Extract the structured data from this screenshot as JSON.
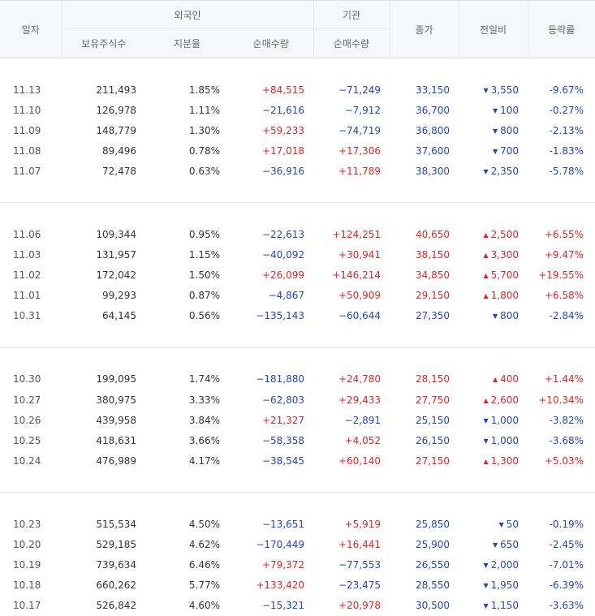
{
  "header": {
    "date": "일자",
    "foreign_group": "외국인",
    "inst_group": "기관",
    "holding": "보유주식수",
    "share_ratio": "지분율",
    "foreign_net": "순매수량",
    "inst_net": "순매수량",
    "close": "종가",
    "change": "전일비",
    "rate": "등락률"
  },
  "colors": {
    "up": "#e22424",
    "down": "#2545b8"
  },
  "rows": [
    {
      "date": "11.13",
      "holding": "211,493",
      "share": "1.85%",
      "foreign_net": "+84,515",
      "inst_net": "−71,249",
      "close": "33,150",
      "dir": "down",
      "change": "3,550",
      "rate": "-9.67%"
    },
    {
      "date": "11.10",
      "holding": "126,978",
      "share": "1.11%",
      "foreign_net": "−21,616",
      "inst_net": "−7,912",
      "close": "36,700",
      "dir": "down",
      "change": "100",
      "rate": "-0.27%"
    },
    {
      "date": "11.09",
      "holding": "148,779",
      "share": "1.30%",
      "foreign_net": "+59,233",
      "inst_net": "−74,719",
      "close": "36,800",
      "dir": "down",
      "change": "800",
      "rate": "-2.13%"
    },
    {
      "date": "11.08",
      "holding": "89,496",
      "share": "0.78%",
      "foreign_net": "+17,018",
      "inst_net": "+17,306",
      "close": "37,600",
      "dir": "down",
      "change": "700",
      "rate": "-1.83%"
    },
    {
      "date": "11.07",
      "holding": "72,478",
      "share": "0.63%",
      "foreign_net": "−36,916",
      "inst_net": "+11,789",
      "close": "38,300",
      "dir": "down",
      "change": "2,350",
      "rate": "-5.78%"
    },
    {
      "date": "11.06",
      "holding": "109,344",
      "share": "0.95%",
      "foreign_net": "−22,613",
      "inst_net": "+124,251",
      "close": "40,650",
      "dir": "up",
      "change": "2,500",
      "rate": "+6.55%"
    },
    {
      "date": "11.03",
      "holding": "131,957",
      "share": "1.15%",
      "foreign_net": "−40,092",
      "inst_net": "+30,941",
      "close": "38,150",
      "dir": "up",
      "change": "3,300",
      "rate": "+9.47%"
    },
    {
      "date": "11.02",
      "holding": "172,042",
      "share": "1.50%",
      "foreign_net": "+26,099",
      "inst_net": "+146,214",
      "close": "34,850",
      "dir": "up",
      "change": "5,700",
      "rate": "+19.55%"
    },
    {
      "date": "11.01",
      "holding": "99,293",
      "share": "0.87%",
      "foreign_net": "−4,867",
      "inst_net": "+50,909",
      "close": "29,150",
      "dir": "up",
      "change": "1,800",
      "rate": "+6.58%"
    },
    {
      "date": "10.31",
      "holding": "64,145",
      "share": "0.56%",
      "foreign_net": "−135,143",
      "inst_net": "−60,644",
      "close": "27,350",
      "dir": "down",
      "change": "800",
      "rate": "-2.84%"
    },
    {
      "date": "10.30",
      "holding": "199,095",
      "share": "1.74%",
      "foreign_net": "−181,880",
      "inst_net": "+24,780",
      "close": "28,150",
      "dir": "up",
      "change": "400",
      "rate": "+1.44%"
    },
    {
      "date": "10.27",
      "holding": "380,975",
      "share": "3.33%",
      "foreign_net": "−62,803",
      "inst_net": "+29,433",
      "close": "27,750",
      "dir": "up",
      "change": "2,600",
      "rate": "+10.34%"
    },
    {
      "date": "10.26",
      "holding": "439,958",
      "share": "3.84%",
      "foreign_net": "+21,327",
      "inst_net": "−2,891",
      "close": "25,150",
      "dir": "down",
      "change": "1,000",
      "rate": "-3.82%"
    },
    {
      "date": "10.25",
      "holding": "418,631",
      "share": "3.66%",
      "foreign_net": "−58,358",
      "inst_net": "+4,052",
      "close": "26,150",
      "dir": "down",
      "change": "1,000",
      "rate": "-3.68%"
    },
    {
      "date": "10.24",
      "holding": "476,989",
      "share": "4.17%",
      "foreign_net": "−38,545",
      "inst_net": "+60,140",
      "close": "27,150",
      "dir": "up",
      "change": "1,300",
      "rate": "+5.03%"
    },
    {
      "date": "10.23",
      "holding": "515,534",
      "share": "4.50%",
      "foreign_net": "−13,651",
      "inst_net": "+5,919",
      "close": "25,850",
      "dir": "down",
      "change": "50",
      "rate": "-0.19%"
    },
    {
      "date": "10.20",
      "holding": "529,185",
      "share": "4.62%",
      "foreign_net": "−170,449",
      "inst_net": "+16,441",
      "close": "25,900",
      "dir": "down",
      "change": "650",
      "rate": "-2.45%"
    },
    {
      "date": "10.19",
      "holding": "739,634",
      "share": "6.46%",
      "foreign_net": "+79,372",
      "inst_net": "−77,553",
      "close": "26,550",
      "dir": "down",
      "change": "2,000",
      "rate": "-7.01%"
    },
    {
      "date": "10.18",
      "holding": "660,262",
      "share": "5.77%",
      "foreign_net": "+133,420",
      "inst_net": "−23,475",
      "close": "28,550",
      "dir": "down",
      "change": "1,950",
      "rate": "-6.39%"
    },
    {
      "date": "10.17",
      "holding": "526,842",
      "share": "4.60%",
      "foreign_net": "−15,321",
      "inst_net": "+20,978",
      "close": "30,500",
      "dir": "down",
      "change": "1,150",
      "rate": "-3.63%"
    }
  ]
}
